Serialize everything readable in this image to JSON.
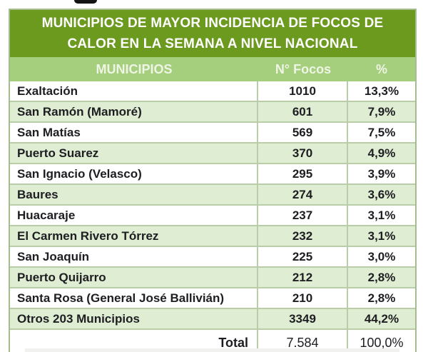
{
  "table": {
    "title_line1": "MUNICIPIOS DE MAYOR INCIDENCIA DE FOCOS DE",
    "title_line2": "CALOR EN LA SEMANA A NIVEL NACIONAL",
    "columns": [
      "MUNICIPIOS",
      "N° Focos",
      "%"
    ],
    "rows": [
      {
        "municipio": "Exaltación",
        "focos": "1010",
        "pct": "13,3%"
      },
      {
        "municipio": "San Ramón (Mamoré)",
        "focos": "601",
        "pct": "7,9%"
      },
      {
        "municipio": "San Matías",
        "focos": "569",
        "pct": "7,5%"
      },
      {
        "municipio": "Puerto Suarez",
        "focos": "370",
        "pct": "4,9%"
      },
      {
        "municipio": "San Ignacio (Velasco)",
        "focos": "295",
        "pct": "3,9%"
      },
      {
        "municipio": "Baures",
        "focos": "274",
        "pct": "3,6%"
      },
      {
        "municipio": "Huacaraje",
        "focos": "237",
        "pct": "3,1%"
      },
      {
        "municipio": "El Carmen Rivero Tórrez",
        "focos": "232",
        "pct": "3,1%"
      },
      {
        "municipio": "San Joaquín",
        "focos": "225",
        "pct": "3,0%"
      },
      {
        "municipio": "Puerto Quijarro",
        "focos": "212",
        "pct": "2,8%"
      },
      {
        "municipio": "Santa Rosa (General José Ballivián)",
        "focos": "210",
        "pct": "2,8%"
      },
      {
        "municipio": "Otros 203 Municipios",
        "focos": "3349",
        "pct": "44,2%"
      }
    ],
    "total": {
      "label": "Total",
      "focos": "7.584",
      "pct": "100,0%"
    },
    "colors": {
      "title_bg": "#6b9a1f",
      "header_bg": "#a5ce7d",
      "row_alt_bg": "#dfedd3",
      "row_bg": "#ffffff",
      "border": "#b9cda9",
      "text": "#1d1d22",
      "title_text": "#ffffff",
      "header_text": "#eef5e5"
    }
  },
  "chart_data": {
    "type": "table",
    "title": "MUNICIPIOS DE MAYOR INCIDENCIA DE FOCOS DE CALOR EN LA SEMANA A NIVEL NACIONAL",
    "columns": [
      "MUNICIPIOS",
      "N° Focos",
      "%"
    ],
    "rows": [
      [
        "Exaltación",
        1010,
        "13,3%"
      ],
      [
        "San Ramón (Mamoré)",
        601,
        "7,9%"
      ],
      [
        "San Matías",
        569,
        "7,5%"
      ],
      [
        "Puerto Suarez",
        370,
        "4,9%"
      ],
      [
        "San Ignacio (Velasco)",
        295,
        "3,9%"
      ],
      [
        "Baures",
        274,
        "3,6%"
      ],
      [
        "Huacaraje",
        237,
        "3,1%"
      ],
      [
        "El Carmen Rivero Tórrez",
        232,
        "3,1%"
      ],
      [
        "San Joaquín",
        225,
        "3,0%"
      ],
      [
        "Puerto Quijarro",
        212,
        "2,8%"
      ],
      [
        "Santa Rosa (General José Ballivián)",
        210,
        "2,8%"
      ],
      [
        "Otros 203 Municipios",
        3349,
        "44,2%"
      ]
    ],
    "total_row": [
      "Total",
      "7.584",
      "100,0%"
    ]
  }
}
